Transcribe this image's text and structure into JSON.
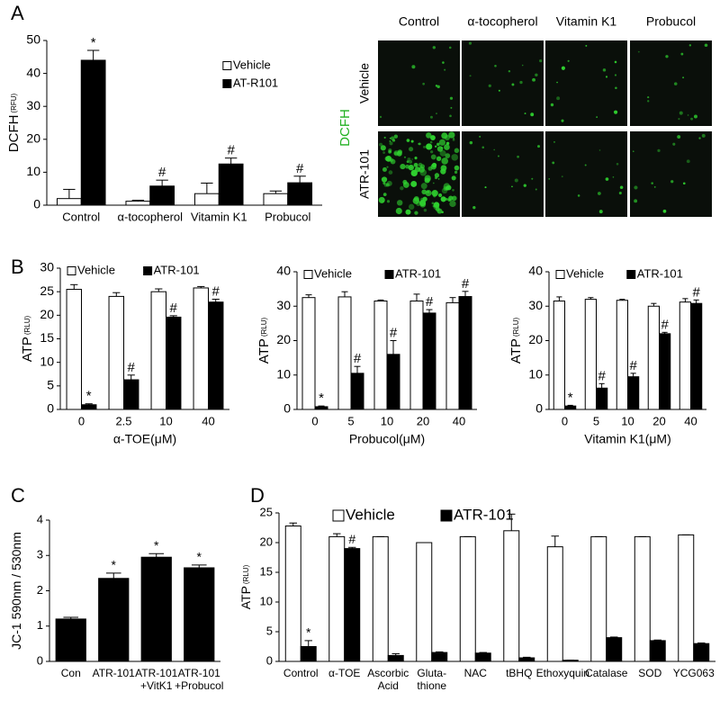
{
  "chart_data": [
    {
      "type": "bar",
      "panel": "A",
      "ylabel": "DCFH",
      "ylabel_sub": "(RFU)",
      "categories": [
        [
          "Control"
        ],
        [
          "α-tocopherol"
        ],
        [
          "Vitamin K1"
        ],
        [
          "Probucol"
        ]
      ],
      "series": [
        {
          "name": "Vehicle",
          "color": "#ffffff",
          "values": [
            2,
            1.2,
            3.5,
            3.5
          ],
          "errors": [
            2.8,
            0.3,
            3.2,
            0.8
          ],
          "markers": [
            null,
            null,
            null,
            null
          ]
        },
        {
          "name": "AT-R101",
          "color": "#000000",
          "values": [
            44,
            5.8,
            12.5,
            6.8
          ],
          "errors": [
            3,
            1.8,
            1.8,
            2
          ],
          "markers": [
            "*",
            "#",
            "#",
            "#"
          ]
        }
      ],
      "ylim": [
        0,
        50
      ],
      "yticks": [
        0,
        10,
        20,
        30,
        40,
        50
      ],
      "legend": "upper-right"
    },
    {
      "type": "bar",
      "panel": "B",
      "ylabel": "ATP",
      "ylabel_sub": "(RLU)",
      "xlabel": "α-TOE(μM)",
      "categories": [
        [
          "0"
        ],
        [
          "2.5"
        ],
        [
          "10"
        ],
        [
          "40"
        ]
      ],
      "series": [
        {
          "name": "Vehicle",
          "color": "#ffffff",
          "values": [
            25.5,
            24,
            25,
            25.8
          ],
          "errors": [
            1,
            0.8,
            0.6,
            0.3
          ],
          "markers": [
            null,
            null,
            null,
            null
          ]
        },
        {
          "name": "ATR-101",
          "color": "#000000",
          "values": [
            1,
            6.3,
            19.6,
            22.8
          ],
          "errors": [
            0.2,
            1,
            0.3,
            0.6
          ],
          "markers": [
            "*",
            "#",
            "#",
            "#"
          ]
        }
      ],
      "ylim": [
        0,
        30
      ],
      "yticks": [
        0,
        5,
        10,
        15,
        20,
        25,
        30
      ],
      "legend": "top"
    },
    {
      "type": "bar",
      "ylabel": "ATP",
      "ylabel_sub": "(RLU)",
      "xlabel": "Probucol(μM)",
      "categories": [
        [
          "0"
        ],
        [
          "5"
        ],
        [
          "10"
        ],
        [
          "20"
        ],
        [
          "40"
        ]
      ],
      "series": [
        {
          "name": "Vehicle",
          "color": "#ffffff",
          "values": [
            32.5,
            32.7,
            31.5,
            31.5,
            31
          ],
          "errors": [
            0.8,
            1.5,
            0.3,
            2,
            1.5
          ],
          "markers": [
            null,
            null,
            null,
            null,
            null
          ]
        },
        {
          "name": "ATR-101",
          "color": "#000000",
          "values": [
            0.8,
            10.5,
            16,
            28,
            32.8
          ],
          "errors": [
            0.2,
            2,
            4,
            1,
            1.5
          ],
          "markers": [
            "*",
            "#",
            "#",
            "#",
            "#"
          ]
        }
      ],
      "ylim": [
        0,
        40
      ],
      "yticks": [
        0,
        10,
        20,
        30,
        40
      ],
      "legend": "top"
    },
    {
      "type": "bar",
      "ylabel": "ATP",
      "ylabel_sub": "(RLU)",
      "xlabel": "Vitamin K1(μM)",
      "categories": [
        [
          "0"
        ],
        [
          "5"
        ],
        [
          "10"
        ],
        [
          "20"
        ],
        [
          "40"
        ]
      ],
      "series": [
        {
          "name": "Vehicle",
          "color": "#ffffff",
          "values": [
            31.5,
            32,
            31.7,
            30,
            31.2
          ],
          "errors": [
            1.2,
            0.5,
            0.3,
            0.8,
            1
          ],
          "markers": [
            null,
            null,
            null,
            null,
            null
          ]
        },
        {
          "name": "ATR-101",
          "color": "#000000",
          "values": [
            1,
            6.2,
            9.5,
            22,
            30.8
          ],
          "errors": [
            0.2,
            1.3,
            1,
            0.4,
            1
          ],
          "markers": [
            "*",
            "#",
            "#",
            "#",
            "#"
          ]
        }
      ],
      "ylim": [
        0,
        40
      ],
      "yticks": [
        0,
        10,
        20,
        30,
        40
      ],
      "legend": "top"
    },
    {
      "type": "bar",
      "panel": "C",
      "ylabel": "JC-1 590nm / 530nm",
      "categories": [
        [
          "Con"
        ],
        [
          "ATR-101"
        ],
        [
          "ATR-101",
          "+VitK1"
        ],
        [
          "ATR-101",
          "+Probucol"
        ]
      ],
      "series": [
        {
          "color": "#000000",
          "values": [
            1.2,
            2.35,
            2.95,
            2.65
          ],
          "errors": [
            0.05,
            0.15,
            0.1,
            0.08
          ],
          "markers": [
            null,
            "*",
            "*",
            "*"
          ]
        }
      ],
      "ylim": [
        0,
        4
      ],
      "yticks": [
        0,
        1,
        2,
        3,
        4
      ]
    },
    {
      "type": "bar",
      "panel": "D",
      "ylabel": "ATP",
      "ylabel_sub": "(RLU)",
      "categories": [
        [
          "Control"
        ],
        [
          "α-TOE"
        ],
        [
          "Ascorbic",
          "Acid"
        ],
        [
          "Gluta-",
          "thione"
        ],
        [
          "NAC"
        ],
        [
          "tBHQ"
        ],
        [
          "Ethoxyquin"
        ],
        [
          "Catalase"
        ],
        [
          "SOD"
        ],
        [
          "YCG063"
        ]
      ],
      "series": [
        {
          "name": "Vehicle",
          "color": "#ffffff",
          "values": [
            22.8,
            21,
            21,
            20,
            21,
            22,
            19.3,
            21,
            21,
            21.3
          ],
          "errors": [
            0.5,
            0.5,
            0,
            0,
            0,
            2.8,
            1.8,
            0,
            0,
            0
          ],
          "markers": [
            null,
            null,
            null,
            null,
            null,
            null,
            null,
            null,
            null,
            null
          ]
        },
        {
          "name": "ATR-101",
          "color": "#000000",
          "values": [
            2.5,
            19,
            1,
            1.5,
            1.4,
            0.6,
            0.2,
            4,
            3.5,
            3
          ],
          "errors": [
            1,
            0.2,
            0.3,
            0.1,
            0.1,
            0.1,
            0,
            0.1,
            0.1,
            0.1
          ],
          "markers": [
            "*",
            "#",
            null,
            null,
            null,
            null,
            null,
            null,
            null,
            null
          ]
        }
      ],
      "ylim": [
        0,
        25
      ],
      "yticks": [
        0,
        5,
        10,
        15,
        20,
        25
      ],
      "legend": "top"
    }
  ],
  "micrograph": {
    "columns": [
      "Control",
      "α-tocopherol",
      "Vitamin K1",
      "Probucol"
    ],
    "rows": [
      "Vehicle",
      "ATR-101"
    ],
    "stain": "DCFH"
  }
}
